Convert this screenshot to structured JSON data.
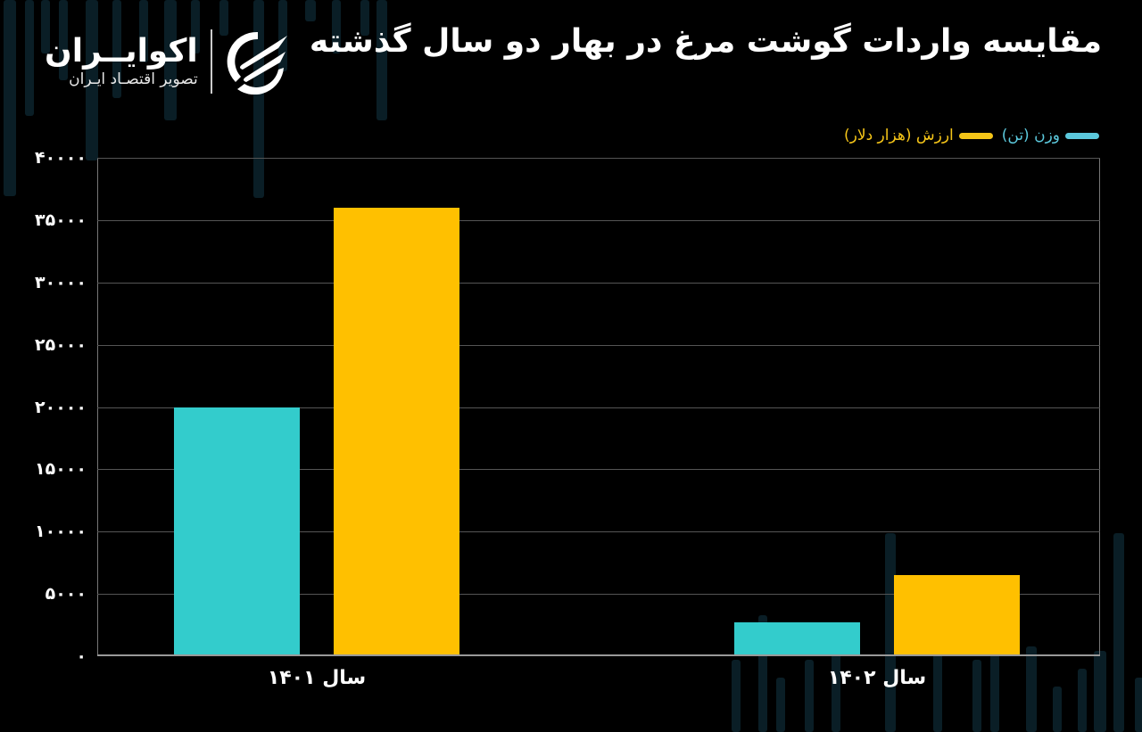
{
  "header": {
    "title": "مقایسه واردات گوشت مرغ در بهار دو سال گذشته"
  },
  "logo": {
    "name": "اکوایــران",
    "subtitle": "تصویر اقتصـاد ایـران",
    "icon": "ecoiran-swoosh-logo-icon"
  },
  "legend": [
    {
      "label": "وزن (تن)",
      "color": "#5bc8dc"
    },
    {
      "label": "ارزش (هزار دلار)",
      "color": "#f5c518"
    }
  ],
  "colors": {
    "weight_bar": "#33cccc",
    "value_bar": "#ffc000",
    "background": "#000000",
    "grid": "#555555"
  },
  "y_ticks": [
    "۰",
    "۵۰۰۰",
    "۱۰۰۰۰",
    "۱۵۰۰۰",
    "۲۰۰۰۰",
    "۲۵۰۰۰",
    "۳۰۰۰۰",
    "۳۵۰۰۰",
    "۴۰۰۰۰"
  ],
  "x_labels": [
    "سال ۱۴۰۱",
    "سال ۱۴۰۲"
  ],
  "chart_data": {
    "type": "bar",
    "title": "مقایسه واردات گوشت مرغ در بهار دو سال گذشته",
    "categories": [
      "سال ۱۴۰۱",
      "سال ۱۴۰۲"
    ],
    "series": [
      {
        "name": "وزن (تن)",
        "color": "#33cccc",
        "values": [
          20000,
          2700
        ]
      },
      {
        "name": "ارزش (هزار دلار)",
        "color": "#ffc000",
        "values": [
          36000,
          6500
        ]
      }
    ],
    "xlabel": "",
    "ylabel": "",
    "ylim": [
      0,
      40000
    ],
    "yticks": [
      0,
      5000,
      10000,
      15000,
      20000,
      25000,
      30000,
      35000,
      40000
    ],
    "grid": true,
    "legend_position": "top-right"
  }
}
